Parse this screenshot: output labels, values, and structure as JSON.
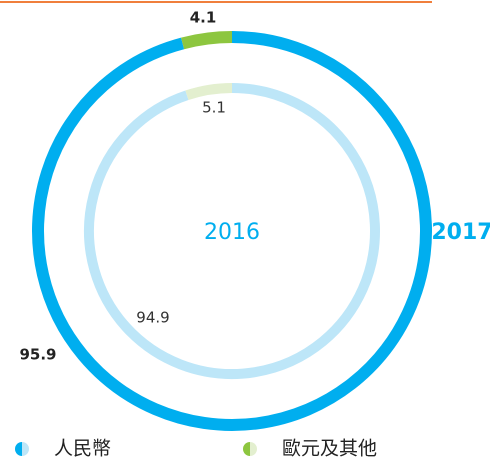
{
  "chart_data": {
    "type": "donut",
    "categories": [
      "人民幣",
      "歐元及其他"
    ],
    "series": [
      {
        "name": "2017",
        "values": [
          95.9,
          4.1
        ],
        "colors": [
          "#00aeef",
          "#8dc63f"
        ]
      },
      {
        "name": "2016",
        "values": [
          94.9,
          5.1
        ],
        "colors": [
          "#bde6f8",
          "#e3efcf"
        ]
      }
    ]
  }
}
